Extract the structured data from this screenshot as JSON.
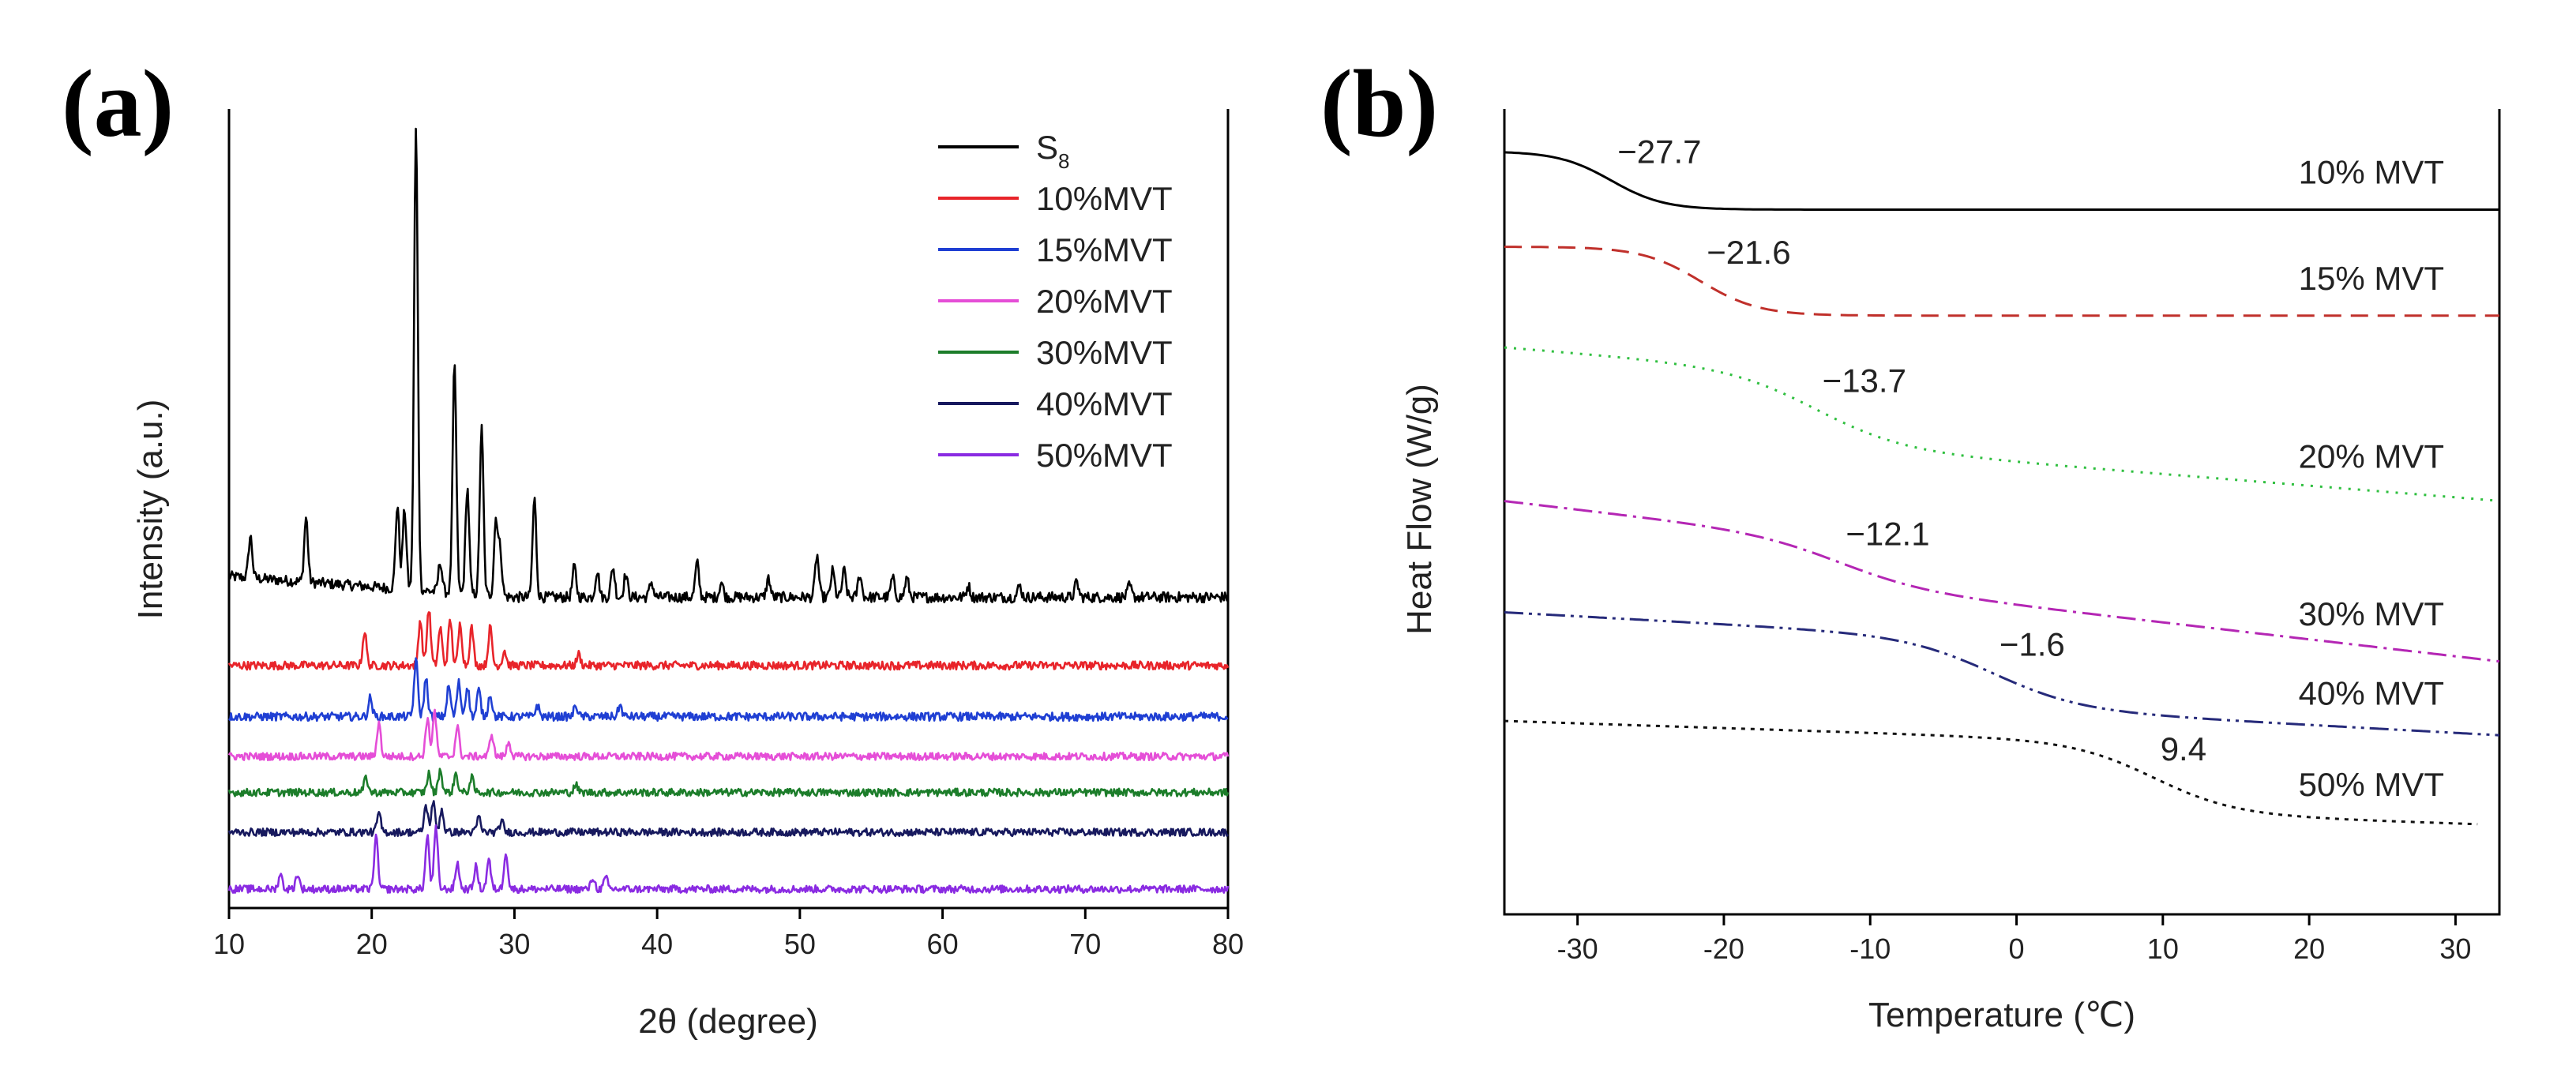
{
  "chart_data": [
    {
      "panel": "(a)",
      "type": "line",
      "xlabel": "2θ (degree)",
      "ylabel": "Intensity (a.u.)",
      "xlim": [
        10,
        80
      ],
      "xticks": [
        10,
        20,
        30,
        40,
        50,
        60,
        70,
        80
      ],
      "legend_position": "top-right",
      "legend_title_main": "S",
      "legend_title_sub": "8",
      "series": [
        {
          "name": "S8",
          "legend_main": "S",
          "legend_sub": "8",
          "color": "#000000",
          "offset": 8.2,
          "noise": 0.14,
          "peaks": [
            [
              11.5,
              1.1
            ],
            [
              15.4,
              1.7
            ],
            [
              21.8,
              2.2
            ],
            [
              22.3,
              2.1
            ],
            [
              23.1,
              12.2
            ],
            [
              24.8,
              0.8
            ],
            [
              25.8,
              6.0
            ],
            [
              26.7,
              2.8
            ],
            [
              27.7,
              4.4
            ],
            [
              28.7,
              2.0
            ],
            [
              29.0,
              1.2
            ],
            [
              31.4,
              2.6
            ],
            [
              34.2,
              0.8
            ],
            [
              35.8,
              0.7
            ],
            [
              36.9,
              0.8
            ],
            [
              37.8,
              0.6
            ],
            [
              39.6,
              0.4
            ],
            [
              42.8,
              0.9
            ],
            [
              44.5,
              0.4
            ],
            [
              47.8,
              0.5
            ],
            [
              51.2,
              1.1
            ],
            [
              52.3,
              0.7
            ],
            [
              53.1,
              0.7
            ],
            [
              54.2,
              0.6
            ],
            [
              56.5,
              0.5
            ],
            [
              57.5,
              0.5
            ],
            [
              61.8,
              0.3
            ],
            [
              65.4,
              0.3
            ],
            [
              69.4,
              0.4
            ],
            [
              73.1,
              0.3
            ]
          ]
        },
        {
          "name": "10%MVT",
          "color": "#e8242a",
          "offset": 6.4,
          "noise": 0.11,
          "peaks": [
            [
              19.5,
              0.9
            ],
            [
              23.4,
              1.2
            ],
            [
              24.0,
              1.5
            ],
            [
              24.8,
              1.0
            ],
            [
              25.5,
              1.2
            ],
            [
              26.2,
              1.1
            ],
            [
              27.0,
              1.0
            ],
            [
              28.3,
              1.0
            ],
            [
              29.3,
              0.4
            ],
            [
              34.5,
              0.3
            ]
          ]
        },
        {
          "name": "15%MVT",
          "color": "#1f3fd3",
          "offset": 5.05,
          "noise": 0.11,
          "peaks": [
            [
              19.9,
              0.5
            ],
            [
              23.1,
              1.5
            ],
            [
              23.8,
              1.0
            ],
            [
              25.4,
              0.8
            ],
            [
              26.1,
              0.9
            ],
            [
              26.7,
              0.8
            ],
            [
              27.5,
              0.7
            ],
            [
              28.3,
              0.6
            ],
            [
              31.6,
              0.3
            ],
            [
              34.3,
              0.3
            ],
            [
              37.4,
              0.3
            ]
          ]
        },
        {
          "name": "20%MVT",
          "color": "#e54ed7",
          "offset": 4.0,
          "noise": 0.1,
          "peaks": [
            [
              20.5,
              0.9
            ],
            [
              23.9,
              1.0
            ],
            [
              24.4,
              1.2
            ],
            [
              26.0,
              0.8
            ],
            [
              28.4,
              0.6
            ],
            [
              29.6,
              0.4
            ]
          ]
        },
        {
          "name": "30%MVT",
          "color": "#1c7d2a",
          "offset": 3.05,
          "noise": 0.1,
          "peaks": [
            [
              19.6,
              0.4
            ],
            [
              24.0,
              0.5
            ],
            [
              24.8,
              0.6
            ],
            [
              25.9,
              0.5
            ],
            [
              27.0,
              0.4
            ],
            [
              34.3,
              0.2
            ]
          ]
        },
        {
          "name": "40%MVT",
          "color": "#17195e",
          "offset": 2.0,
          "noise": 0.1,
          "peaks": [
            [
              20.5,
              0.5
            ],
            [
              23.8,
              0.7
            ],
            [
              24.3,
              0.8
            ],
            [
              24.9,
              0.6
            ],
            [
              27.5,
              0.4
            ],
            [
              29.1,
              0.3
            ]
          ]
        },
        {
          "name": "50%MVT",
          "color": "#8a2be2",
          "offset": 0.5,
          "noise": 0.1,
          "peaks": [
            [
              13.6,
              0.4
            ],
            [
              14.8,
              0.4
            ],
            [
              20.3,
              1.4
            ],
            [
              23.9,
              1.4
            ],
            [
              24.5,
              1.6
            ],
            [
              26.0,
              0.7
            ],
            [
              27.3,
              0.6
            ],
            [
              28.2,
              0.8
            ],
            [
              29.4,
              1.0
            ],
            [
              35.5,
              0.3
            ],
            [
              36.4,
              0.3
            ]
          ]
        }
      ]
    },
    {
      "panel": "(b)",
      "type": "line",
      "xlabel": "Temperature (℃)",
      "ylabel": "Heat Flow (W/g)",
      "xlim": [
        -35,
        33
      ],
      "xticks": [
        -30,
        -20,
        -10,
        0,
        10,
        20,
        30
      ],
      "series": [
        {
          "name": "10% MVT",
          "color": "#000000",
          "dash": "",
          "x0": -35,
          "x1": 33,
          "hi": 9.4,
          "lo": 8.3,
          "tc": -27.7,
          "w": 1.8,
          "slope": 0,
          "annotation": "−27.7"
        },
        {
          "name": "15% MVT",
          "color": "#c0302b",
          "dash": "22 12",
          "x0": -35,
          "x1": 33,
          "hi": 7.6,
          "lo": 6.3,
          "tc": -21.6,
          "w": 2.0,
          "slope": 0,
          "annotation": "−21.6"
        },
        {
          "name": "20% MVT",
          "color": "#2fbf3f",
          "dash": "3 9",
          "x0": -35,
          "x1": 33,
          "hi": 5.7,
          "lo": 4.3,
          "tc": -13.7,
          "w": 3.0,
          "slope": -0.022,
          "annotation": "−13.7"
        },
        {
          "name": "30% MVT",
          "color": "#b426b4",
          "dash": "24 8 4 8",
          "x0": -35,
          "x1": 33,
          "hi": 2.8,
          "lo": 1.95,
          "tc": -12.1,
          "w": 3.0,
          "slope": -0.032,
          "annotation": "−12.1"
        },
        {
          "name": "40% MVT",
          "color": "#262a7a",
          "dash": "24 7 4 7 4 7",
          "x0": -35,
          "x1": 33,
          "hi": 0.7,
          "lo": -0.6,
          "tc": -1.6,
          "w": 3.0,
          "slope": -0.015,
          "annotation": "−1.6"
        },
        {
          "name": "50% MVT",
          "color": "#111111",
          "dash": "5 7",
          "x0": -35,
          "x1": 31.5,
          "hi": -1.35,
          "lo": -2.7,
          "tc": 9.4,
          "w": 2.8,
          "slope": -0.009,
          "annotation": "9.4"
        }
      ]
    }
  ]
}
